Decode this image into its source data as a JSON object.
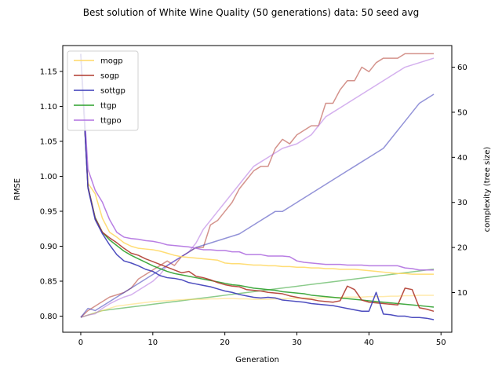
{
  "chart_data": {
    "type": "line",
    "title": "Best solution of White Wine Quality (50 generations) data: 50 seed avg",
    "xlabel": "Generation",
    "ylabel": "RMSE",
    "ylabel_right": "complexity (tree size)",
    "right_axis_color": "#191970",
    "xlim": [
      -2.5,
      51.5
    ],
    "ylim": [
      0.777,
      1.187
    ],
    "ylim_right": [
      1.2,
      64.8
    ],
    "x_ticks": [
      0,
      10,
      20,
      30,
      40,
      50
    ],
    "y_ticks": [
      0.8,
      0.85,
      0.9,
      0.95,
      1.0,
      1.05,
      1.1,
      1.15
    ],
    "y_tick_labels": [
      "0.80",
      "0.85",
      "0.90",
      "0.95",
      "1.00",
      "1.05",
      "1.10",
      "1.15"
    ],
    "y_ticks_right": [
      10,
      20,
      30,
      40,
      50,
      60
    ],
    "legend_position": "top-left",
    "x": [
      0,
      1,
      2,
      3,
      4,
      5,
      6,
      7,
      8,
      9,
      10,
      11,
      12,
      13,
      14,
      15,
      16,
      17,
      18,
      19,
      20,
      21,
      22,
      23,
      24,
      25,
      26,
      27,
      28,
      29,
      30,
      31,
      32,
      33,
      34,
      35,
      36,
      37,
      38,
      39,
      40,
      41,
      42,
      43,
      44,
      45,
      46,
      47,
      48,
      49
    ],
    "series": [
      {
        "name": "mogp",
        "color": "#ffd966",
        "rmse": [
          1.175,
          0.99,
          0.975,
          0.94,
          0.92,
          0.913,
          0.905,
          0.9,
          0.897,
          0.896,
          0.895,
          0.893,
          0.89,
          0.887,
          0.885,
          0.884,
          0.883,
          0.882,
          0.881,
          0.88,
          0.876,
          0.875,
          0.875,
          0.874,
          0.873,
          0.873,
          0.872,
          0.872,
          0.871,
          0.871,
          0.87,
          0.87,
          0.869,
          0.869,
          0.868,
          0.868,
          0.867,
          0.867,
          0.867,
          0.866,
          0.865,
          0.864,
          0.863,
          0.862,
          0.861,
          0.861,
          0.86,
          0.86,
          0.86,
          0.86
        ],
        "complexity": [
          4.5,
          5,
          5.5,
          6,
          6.5,
          7,
          7.2,
          7.4,
          7.6,
          7.8,
          8,
          8.1,
          8.2,
          8.3,
          8.4,
          8.5,
          8.5,
          8.5,
          8.6,
          8.6,
          8.7,
          8.7,
          8.6,
          8.6,
          8.5,
          8.5,
          8.5,
          8.6,
          8.6,
          8.7,
          8.7,
          8.8,
          8.8,
          8.8,
          8.9,
          8.9,
          8.9,
          9,
          9,
          9,
          9.1,
          9.1,
          9.1,
          9.2,
          9.2,
          9.3,
          9.3,
          9.4,
          9.4,
          9.4
        ]
      },
      {
        "name": "sogp",
        "color": "#b03a2e",
        "rmse": [
          1.175,
          0.985,
          0.94,
          0.92,
          0.912,
          0.905,
          0.897,
          0.89,
          0.887,
          0.882,
          0.878,
          0.874,
          0.87,
          0.866,
          0.862,
          0.864,
          0.857,
          0.855,
          0.852,
          0.848,
          0.845,
          0.843,
          0.842,
          0.838,
          0.837,
          0.836,
          0.834,
          0.833,
          0.832,
          0.829,
          0.827,
          0.825,
          0.824,
          0.822,
          0.821,
          0.82,
          0.822,
          0.843,
          0.838,
          0.823,
          0.82,
          0.819,
          0.818,
          0.817,
          0.816,
          0.84,
          0.838,
          0.812,
          0.81,
          0.807
        ],
        "complexity": [
          4.5,
          6,
          7,
          8,
          9,
          9.5,
          10,
          11,
          13,
          14,
          15,
          16,
          17,
          16,
          18,
          19,
          20,
          20,
          25,
          26,
          28,
          30,
          33,
          35,
          37,
          38,
          38,
          42,
          44,
          43,
          45,
          46,
          47,
          47,
          52,
          52,
          55,
          57,
          57,
          60,
          59,
          61,
          62,
          62,
          62,
          63,
          63,
          63,
          63,
          63
        ]
      },
      {
        "name": "sottgp",
        "color": "#3a3ab8",
        "rmse": [
          1.175,
          0.983,
          0.938,
          0.918,
          0.902,
          0.888,
          0.879,
          0.876,
          0.872,
          0.867,
          0.864,
          0.858,
          0.855,
          0.854,
          0.852,
          0.848,
          0.846,
          0.844,
          0.842,
          0.839,
          0.836,
          0.834,
          0.831,
          0.829,
          0.827,
          0.826,
          0.827,
          0.826,
          0.823,
          0.822,
          0.821,
          0.82,
          0.818,
          0.817,
          0.816,
          0.815,
          0.813,
          0.811,
          0.809,
          0.807,
          0.807,
          0.834,
          0.803,
          0.802,
          0.8,
          0.8,
          0.798,
          0.798,
          0.797,
          0.795
        ],
        "complexity": [
          4.5,
          6.5,
          6,
          7,
          8,
          9,
          10,
          11,
          12,
          13,
          14,
          15,
          16,
          17,
          18,
          19,
          20,
          20.5,
          21,
          21.5,
          22,
          22.5,
          23,
          24,
          25,
          26,
          27,
          28,
          28,
          29,
          30,
          31,
          32,
          33,
          34,
          35,
          36,
          37,
          38,
          39,
          40,
          41,
          42,
          44,
          46,
          48,
          50,
          52,
          53,
          54
        ]
      },
      {
        "name": "ttgp",
        "color": "#2ca02c",
        "rmse": [
          1.175,
          0.985,
          0.941,
          0.92,
          0.909,
          0.901,
          0.893,
          0.887,
          0.882,
          0.877,
          0.872,
          0.868,
          0.864,
          0.861,
          0.859,
          0.857,
          0.855,
          0.853,
          0.851,
          0.849,
          0.847,
          0.845,
          0.844,
          0.842,
          0.84,
          0.839,
          0.838,
          0.837,
          0.835,
          0.834,
          0.833,
          0.832,
          0.83,
          0.829,
          0.828,
          0.827,
          0.826,
          0.825,
          0.824,
          0.823,
          0.822,
          0.821,
          0.82,
          0.819,
          0.818,
          0.817,
          0.816,
          0.815,
          0.814,
          0.813
        ],
        "complexity": [
          4.5,
          5,
          5.5,
          6,
          6.2,
          6.4,
          6.6,
          6.8,
          7,
          7.2,
          7.4,
          7.6,
          7.8,
          8,
          8.2,
          8.4,
          8.6,
          8.8,
          9,
          9.2,
          9.4,
          9.6,
          9.8,
          10,
          10.2,
          10.4,
          10.6,
          10.8,
          11,
          11.2,
          11.4,
          11.6,
          11.8,
          12,
          12.2,
          12.4,
          12.6,
          12.8,
          13,
          13.2,
          13.4,
          13.6,
          13.8,
          14,
          14.2,
          14.4,
          14.6,
          14.8,
          15,
          15.2
        ]
      },
      {
        "name": "ttgpo",
        "color": "#b070e0",
        "rmse": [
          1.175,
          1.01,
          0.98,
          0.963,
          0.938,
          0.92,
          0.913,
          0.911,
          0.91,
          0.908,
          0.907,
          0.905,
          0.902,
          0.901,
          0.9,
          0.899,
          0.897,
          0.895,
          0.895,
          0.894,
          0.894,
          0.892,
          0.892,
          0.888,
          0.888,
          0.888,
          0.886,
          0.886,
          0.886,
          0.885,
          0.879,
          0.877,
          0.876,
          0.875,
          0.874,
          0.874,
          0.874,
          0.873,
          0.873,
          0.873,
          0.872,
          0.872,
          0.872,
          0.872,
          0.872,
          0.869,
          0.868,
          0.866,
          0.866,
          0.866
        ],
        "complexity": [
          4.5,
          5,
          5.3,
          6.5,
          7.5,
          8.3,
          9,
          9.5,
          10.5,
          11.5,
          12.5,
          14,
          16,
          17,
          18,
          19,
          21,
          24,
          26,
          28,
          30,
          32,
          34,
          36,
          38,
          39,
          40,
          41,
          42,
          42.5,
          43,
          44,
          45,
          47,
          49,
          50,
          51,
          52,
          53,
          54,
          55,
          56,
          57,
          58,
          59,
          60,
          60.5,
          61,
          61.5,
          62
        ]
      }
    ]
  }
}
